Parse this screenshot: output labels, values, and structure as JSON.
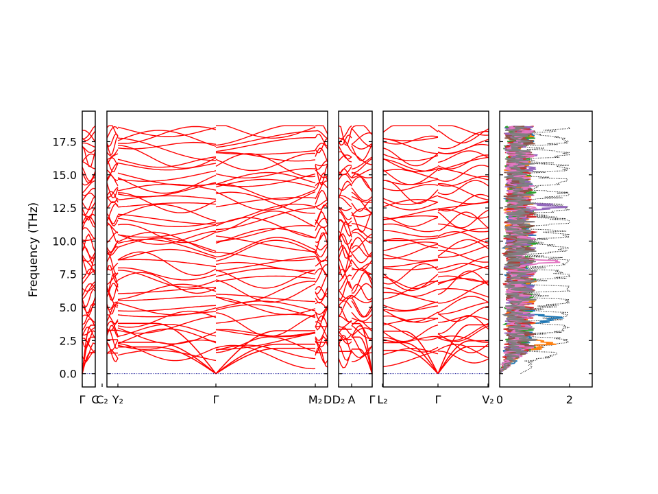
{
  "chart_data": {
    "type": "line",
    "ylabel": "Frequency (THz)",
    "ylim": [
      -1.0,
      19.8
    ],
    "y_ticks": [
      0.0,
      2.5,
      5.0,
      7.5,
      10.0,
      12.5,
      15.0,
      17.5
    ],
    "y_tick_labels": [
      "0.0",
      "2.5",
      "5.0",
      "7.5",
      "10.0",
      "12.5",
      "15.0",
      "17.5"
    ],
    "band_color": "#ff0000",
    "zero_line_color": "#00008b",
    "panels": [
      {
        "id": "p1",
        "x_labels": [
          "Γ",
          "C"
        ]
      },
      {
        "id": "p2",
        "x_labels": [
          "C₂",
          "Y₂",
          "Γ",
          "M₂",
          "D"
        ]
      },
      {
        "id": "p3",
        "x_labels": [
          "D₂",
          "A",
          "Γ"
        ]
      },
      {
        "id": "p4",
        "x_labels": [
          "L₂",
          "Γ",
          "V₂"
        ]
      }
    ],
    "band_segment_labels": [
      "Γ|C",
      "C₂|Y₂",
      "Y₂|Γ",
      "Γ|M₂",
      "M₂|D",
      "D₂|A",
      "A|Γ",
      "L₂|Γ",
      "Γ|V₂"
    ],
    "dos": {
      "type": "line",
      "xlim": [
        0,
        2.65
      ],
      "x_ticks": [
        0,
        2
      ],
      "x_tick_labels": [
        "0",
        "2"
      ],
      "series": [
        {
          "color": "#000000",
          "style": "dotted"
        },
        {
          "color": "#1f77b4"
        },
        {
          "color": "#ff7f0e"
        },
        {
          "color": "#2ca02c"
        },
        {
          "color": "#d62728"
        },
        {
          "color": "#9467bd"
        },
        {
          "color": "#8c564b"
        },
        {
          "color": "#e377c2"
        },
        {
          "color": "#7f7f7f"
        }
      ]
    }
  }
}
